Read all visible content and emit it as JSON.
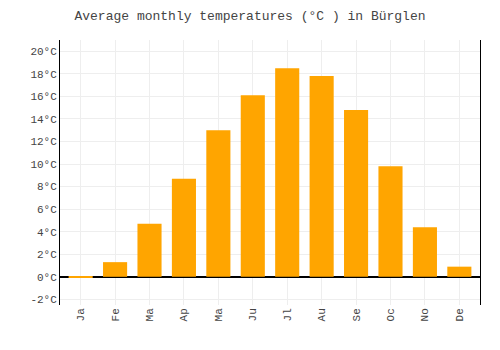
{
  "chart_data": {
    "type": "bar",
    "title": "Average monthly temperatures (°C ) in Bürglen",
    "categories": [
      "Ja",
      "Fe",
      "Ma",
      "Ap",
      "Ma",
      "Ju",
      "Jl",
      "Au",
      "Se",
      "Oc",
      "No",
      "De"
    ],
    "values": [
      -0.1,
      1.3,
      4.7,
      8.7,
      13.0,
      16.1,
      18.5,
      17.8,
      14.8,
      9.8,
      4.4,
      0.9
    ],
    "color": "#FFA500",
    "ylim": [
      -2.5,
      21
    ],
    "yticks": [
      {
        "value": -2,
        "label": "-2°C"
      },
      {
        "value": 0,
        "label": "0°C"
      },
      {
        "value": 2,
        "label": "2°C"
      },
      {
        "value": 4,
        "label": "4°C"
      },
      {
        "value": 6,
        "label": "6°C"
      },
      {
        "value": 8,
        "label": "8°C"
      },
      {
        "value": 10,
        "label": "10°C"
      },
      {
        "value": 12,
        "label": "12°C"
      },
      {
        "value": 14,
        "label": "14°C"
      },
      {
        "value": 16,
        "label": "16°C"
      },
      {
        "value": 18,
        "label": "18°C"
      },
      {
        "value": 20,
        "label": "20°C"
      }
    ],
    "grid": true
  }
}
